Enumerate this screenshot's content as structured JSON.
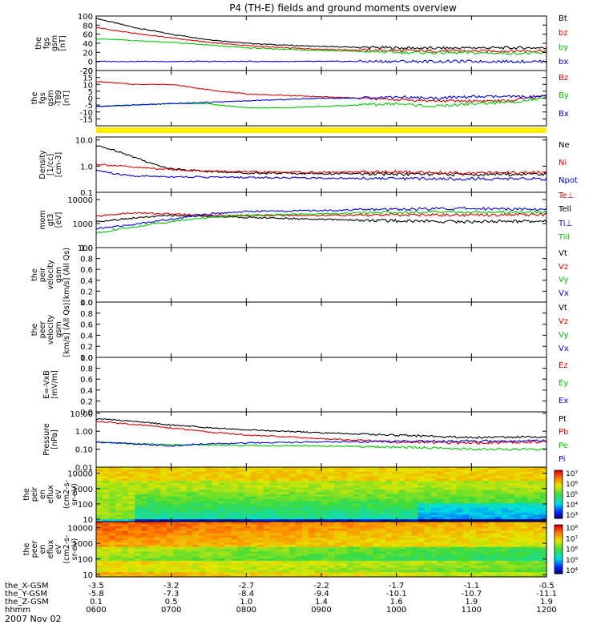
{
  "title": "P4 (TH-E) fields and ground moments overview",
  "date_label": "2007 Nov 02",
  "colors": {
    "black": "#000000",
    "red": "#e00000",
    "green": "#00c800",
    "blue": "#0000e0",
    "yellow": "#ffee00"
  },
  "chart_data": {
    "type": "line",
    "x_range": [
      0,
      6
    ],
    "x_tick_labels": [
      "0600",
      "0700",
      "0800",
      "0900",
      "1000",
      "1100",
      "1200"
    ],
    "orbit_rows": [
      {
        "label": "the_X-GSM",
        "values": [
          "-3.5",
          "-3.2",
          "-2.7",
          "-2.2",
          "-1.7",
          "-1.1",
          "-0.5"
        ]
      },
      {
        "label": "the_Y-GSM",
        "values": [
          "-5.8",
          "-7.3",
          "-8.4",
          "-9.4",
          "-10.1",
          "-10.7",
          "-11.1"
        ]
      },
      {
        "label": "the_Z-GSM",
        "values": [
          "0.1",
          "0.5",
          "1.0",
          "1.4",
          "1.6",
          "1.9",
          "1.9"
        ]
      },
      {
        "label": "hhmm",
        "values": []
      }
    ],
    "panels": [
      {
        "id": "fgs_gsm",
        "ylabel": [
          "the",
          "fgs",
          "gsm",
          "[nT]"
        ],
        "scale": "linear",
        "ylim": [
          -20,
          100
        ],
        "ticks": [
          "100",
          "80",
          "60",
          "40",
          "20",
          "0",
          "-20"
        ],
        "series": [
          {
            "name": "Bt",
            "color": "black",
            "x": [
              0,
              0.25,
              0.5,
              1,
              1.5,
              2,
              2.5,
              3,
              3.5,
              4,
              4.5,
              5,
              5.5,
              6
            ],
            "y": [
              95,
              85,
              75,
              60,
              48,
              40,
              36,
              33,
              31,
              30,
              29,
              30,
              30,
              30
            ]
          },
          {
            "name": "bz",
            "color": "red",
            "x": [
              0,
              0.25,
              0.5,
              1,
              1.5,
              2,
              2.5,
              3,
              3.5,
              4,
              4.5,
              5,
              5.5,
              6
            ],
            "y": [
              75,
              68,
              62,
              52,
              42,
              35,
              30,
              27,
              25,
              24,
              23,
              23,
              23,
              24
            ]
          },
          {
            "name": "by",
            "color": "green",
            "x": [
              0,
              0.25,
              0.5,
              1,
              1.5,
              2,
              2.5,
              3,
              3.5,
              4,
              4.5,
              5,
              5.5,
              6
            ],
            "y": [
              50,
              48,
              46,
              42,
              36,
              30,
              27,
              24,
              22,
              20,
              19,
              19,
              18,
              18
            ]
          },
          {
            "name": "bx",
            "color": "blue",
            "x": [
              0,
              0.5,
              1,
              2,
              3,
              4,
              5,
              6
            ],
            "y": [
              0,
              0,
              0,
              0,
              0,
              0,
              0,
              0
            ]
          }
        ]
      },
      {
        "id": "fgs_gsm_t89",
        "ylabel": [
          "the",
          "fgs",
          "gsm",
          "-T89",
          "[nT]"
        ],
        "scale": "linear",
        "ylim": [
          -20,
          20
        ],
        "ticks": [
          "20",
          "15",
          "10",
          "5",
          "0",
          "-5",
          "-10",
          "-15"
        ],
        "series": [
          {
            "name": "Bz",
            "color": "red",
            "x": [
              0,
              0.5,
              1,
              1.5,
              2,
              2.5,
              3,
              3.5,
              4,
              4.5,
              5,
              5.5,
              6
            ],
            "y": [
              12,
              10,
              10,
              6,
              3,
              2,
              1,
              0,
              -1,
              -2,
              -2,
              -2,
              2
            ]
          },
          {
            "name": "By",
            "color": "green",
            "x": [
              0,
              0.5,
              1,
              1.5,
              2,
              2.5,
              3,
              3.5,
              4,
              4.5,
              5,
              5.5,
              6
            ],
            "y": [
              -6,
              -5,
              -4,
              -4,
              -7,
              -7,
              -6,
              -5,
              -4,
              -6,
              -4,
              -3,
              0
            ]
          },
          {
            "name": "Bx",
            "color": "blue",
            "x": [
              0,
              0.5,
              1,
              1.5,
              2,
              2.5,
              3,
              3.5,
              4,
              4.5,
              5,
              5.5,
              6
            ],
            "y": [
              -6,
              -5,
              -4,
              -3,
              -2,
              -1,
              0,
              0,
              1,
              0,
              1,
              1,
              1
            ]
          }
        ]
      },
      {
        "id": "density",
        "ylabel": [
          "Density",
          "[1/cc]",
          "[cm-3]"
        ],
        "scale": "log",
        "ylim": [
          0.1,
          13
        ],
        "ticks": [
          "10.0",
          "1.0",
          "0.1"
        ],
        "series": [
          {
            "name": "Ne",
            "color": "black",
            "x": [
              0,
              0.25,
              0.5,
              0.75,
              1,
              1.5,
              2,
              3,
              4,
              5,
              6
            ],
            "y": [
              6,
              4,
              2.2,
              1.2,
              0.8,
              0.62,
              0.55,
              0.52,
              0.5,
              0.48,
              0.5
            ]
          },
          {
            "name": "Ni",
            "color": "red",
            "x": [
              0,
              0.5,
              1,
              1.5,
              2,
              3,
              4,
              5,
              6
            ],
            "y": [
              1.2,
              0.9,
              0.75,
              0.65,
              0.6,
              0.58,
              0.6,
              0.55,
              0.58
            ]
          },
          {
            "name": "Npot",
            "color": "blue",
            "x": [
              0,
              0.25,
              0.5,
              1,
              1.5,
              2,
              3,
              4,
              5,
              6
            ],
            "y": [
              0.7,
              0.5,
              0.42,
              0.4,
              0.38,
              0.37,
              0.35,
              0.34,
              0.33,
              0.33
            ]
          }
        ]
      },
      {
        "id": "mom_temp",
        "ylabel": [
          "mom",
          "gt3",
          "[eV]"
        ],
        "scale": "log",
        "ylim": [
          100,
          20000
        ],
        "ticks": [
          "10000",
          "1000",
          "100"
        ],
        "series": [
          {
            "name": "Te⊥",
            "color": "red",
            "x": [
              0,
              0.5,
              1,
              1.5,
              2,
              3,
              4,
              5,
              6
            ],
            "y": [
              2000,
              2800,
              2500,
              2200,
              2200,
              2200,
              2300,
              2300,
              2400
            ]
          },
          {
            "name": "Tell",
            "color": "black",
            "x": [
              0,
              0.5,
              1,
              1.5,
              2,
              3,
              4,
              5,
              6
            ],
            "y": [
              1200,
              1700,
              2200,
              2000,
              1800,
              1500,
              1300,
              1200,
              1300
            ]
          },
          {
            "name": "Ti⊥",
            "color": "blue",
            "x": [
              0,
              0.5,
              1,
              1.5,
              2,
              3,
              4,
              5,
              6
            ],
            "y": [
              600,
              900,
              1500,
              2500,
              3200,
              3500,
              4000,
              4200,
              4000
            ]
          },
          {
            "name": "Till",
            "color": "green",
            "x": [
              0,
              0.5,
              1,
              1.5,
              2,
              3,
              4,
              5,
              6
            ],
            "y": [
              400,
              700,
              1200,
              1800,
              2200,
              2500,
              3000,
              3000,
              3000
            ]
          }
        ]
      },
      {
        "id": "peir_velocity",
        "ylabel": [
          "the",
          "peir",
          "velocity",
          "gsm",
          "[km/s] (All Qs)"
        ],
        "scale": "linear",
        "ylim": [
          0,
          1
        ],
        "ticks": [
          "1.0",
          "0.8",
          "0.6",
          "0.4",
          "0.2",
          "0.0"
        ],
        "series": [
          {
            "name": "Vt",
            "color": "black"
          },
          {
            "name": "Vz",
            "color": "red"
          },
          {
            "name": "Vy",
            "color": "green"
          },
          {
            "name": "Vx",
            "color": "blue"
          }
        ]
      },
      {
        "id": "peer_velocity",
        "ylabel": [
          "the",
          "peer",
          "velocity",
          "gsm",
          "[km/s] (All Qs)"
        ],
        "scale": "linear",
        "ylim": [
          0,
          1
        ],
        "ticks": [
          "1.0",
          "0.8",
          "0.6",
          "0.4",
          "0.2",
          "0.0"
        ],
        "series": [
          {
            "name": "Vt",
            "color": "black"
          },
          {
            "name": "Vz",
            "color": "red"
          },
          {
            "name": "Vy",
            "color": "green"
          },
          {
            "name": "Vx",
            "color": "blue"
          }
        ]
      },
      {
        "id": "efield",
        "ylabel": [
          "E=-VxB",
          "[mV/m]"
        ],
        "scale": "linear",
        "ylim": [
          0,
          1
        ],
        "ticks": [
          "1.0",
          "0.8",
          "0.6",
          "0.4",
          "0.2",
          "0.0"
        ],
        "series": [
          {
            "name": "Ez",
            "color": "red"
          },
          {
            "name": "Ey",
            "color": "green"
          },
          {
            "name": "Ex",
            "color": "blue"
          }
        ]
      },
      {
        "id": "pressure",
        "ylabel": [
          "Pressure",
          "[nPa]"
        ],
        "scale": "log",
        "ylim": [
          0.01,
          12
        ],
        "ticks": [
          "10.00",
          "1.00",
          "0.10",
          "0.01"
        ],
        "series": [
          {
            "name": "Pt",
            "color": "black",
            "x": [
              0,
              0.5,
              1,
              1.5,
              2,
              3,
              4,
              5,
              6
            ],
            "y": [
              5,
              3.5,
              2.2,
              1.6,
              1.2,
              0.8,
              0.6,
              0.45,
              0.5
            ]
          },
          {
            "name": "Pb",
            "color": "red",
            "x": [
              0,
              0.5,
              1,
              1.5,
              2,
              3,
              4,
              5,
              6
            ],
            "y": [
              3.5,
              2.4,
              1.5,
              0.9,
              0.6,
              0.38,
              0.25,
              0.22,
              0.25
            ]
          },
          {
            "name": "Pe",
            "color": "green",
            "x": [
              0,
              0.5,
              1,
              1.5,
              2,
              3,
              4,
              5,
              6
            ],
            "y": [
              0.25,
              0.2,
              0.18,
              0.17,
              0.16,
              0.15,
              0.13,
              0.1,
              0.1
            ]
          },
          {
            "name": "Pi",
            "color": "blue",
            "x": [
              0,
              0.5,
              1,
              1.5,
              2,
              3,
              4,
              5,
              6
            ],
            "y": [
              0.25,
              0.2,
              0.15,
              0.2,
              0.22,
              0.25,
              0.28,
              0.28,
              0.3
            ]
          }
        ]
      },
      {
        "id": "peir_en_eflux",
        "type": "heatmap",
        "ylabel": [
          "the",
          "peir",
          "en",
          "eflux",
          "eV",
          "(cm2-s-",
          "sr-eV)"
        ],
        "scale": "log",
        "ylim": [
          7,
          25000
        ],
        "ticks": [
          "10000",
          "1000",
          "100",
          "10"
        ],
        "colorbar_ticks": [
          "10⁷",
          "10⁶",
          "10⁵",
          "10⁴",
          "10³"
        ],
        "zlim": [
          300,
          20000000
        ]
      },
      {
        "id": "peer_en_eflux",
        "type": "heatmap",
        "ylabel": [
          "the",
          "peer",
          "en",
          "eflux",
          "eV",
          "(cm2-s-",
          "sr-eV)"
        ],
        "scale": "log",
        "ylim": [
          7,
          25000
        ],
        "ticks": [
          "10000",
          "1000",
          "100",
          "10"
        ],
        "colorbar_ticks": [
          "10⁸",
          "10⁷",
          "10⁶",
          "10⁵",
          "10⁴"
        ],
        "zlim": [
          3000,
          300000000
        ]
      }
    ]
  }
}
